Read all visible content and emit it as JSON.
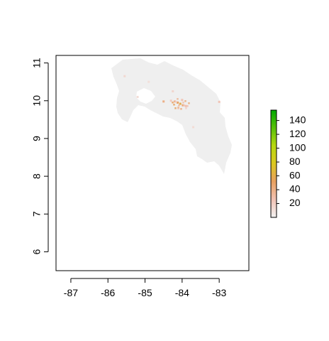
{
  "chart_data": {
    "type": "heatmap",
    "title": "",
    "xlabel": "",
    "ylabel": "",
    "xlim": [
      -87.4,
      -82.2
    ],
    "ylim": [
      5.5,
      11.2
    ],
    "x_ticks": [
      "-87",
      "-86",
      "-85",
      "-84",
      "-83"
    ],
    "y_ticks": [
      "6",
      "7",
      "8",
      "9",
      "10",
      "11"
    ],
    "legend": {
      "placement": "right",
      "range": [
        0,
        155
      ],
      "ticks": [
        "20",
        "40",
        "60",
        "80",
        "100",
        "120",
        "140"
      ],
      "color_stops": [
        "#f2f2f2",
        "#f1c2b4",
        "#e8a060",
        "#dcc820",
        "#b8d810",
        "#58c008",
        "#00a800"
      ]
    },
    "map": {
      "region_fill": "#efefef",
      "hotspots": [
        {
          "lon": -84.05,
          "lat": 9.92,
          "value": 60
        },
        {
          "lon": -84.12,
          "lat": 9.95,
          "value": 50
        },
        {
          "lon": -83.98,
          "lat": 9.88,
          "value": 45
        },
        {
          "lon": -84.2,
          "lat": 9.98,
          "value": 35
        },
        {
          "lon": -84.0,
          "lat": 10.02,
          "value": 30
        },
        {
          "lon": -83.9,
          "lat": 9.86,
          "value": 28
        },
        {
          "lon": -84.3,
          "lat": 10.0,
          "value": 22
        },
        {
          "lon": -84.5,
          "lat": 9.98,
          "value": 40
        },
        {
          "lon": -84.1,
          "lat": 9.8,
          "value": 18
        },
        {
          "lon": -83.0,
          "lat": 9.97,
          "value": 25
        },
        {
          "lon": -84.25,
          "lat": 10.25,
          "value": 15
        },
        {
          "lon": -85.2,
          "lat": 10.1,
          "value": 12
        },
        {
          "lon": -84.9,
          "lat": 10.5,
          "value": 10
        },
        {
          "lon": -83.7,
          "lat": 9.3,
          "value": 12
        },
        {
          "lon": -85.55,
          "lat": 10.65,
          "value": 14
        }
      ]
    }
  }
}
